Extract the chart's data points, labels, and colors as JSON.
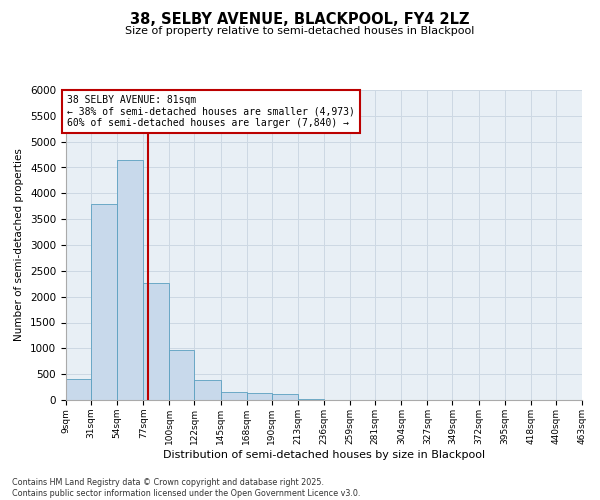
{
  "title_line1": "38, SELBY AVENUE, BLACKPOOL, FY4 2LZ",
  "title_line2": "Size of property relative to semi-detached houses in Blackpool",
  "xlabel": "Distribution of semi-detached houses by size in Blackpool",
  "ylabel": "Number of semi-detached properties",
  "footer_line1": "Contains HM Land Registry data © Crown copyright and database right 2025.",
  "footer_line2": "Contains public sector information licensed under the Open Government Licence v3.0.",
  "property_size": 81,
  "property_label": "38 SELBY AVENUE: 81sqm",
  "smaller_pct": 38,
  "smaller_count": 4973,
  "larger_pct": 60,
  "larger_count": 7840,
  "bar_color": "#c8d9eb",
  "bar_edge_color": "#5a9fc0",
  "line_color": "#bb0000",
  "annotation_edge_color": "#bb0000",
  "grid_color": "#cdd8e3",
  "bg_color": "#e8eff5",
  "bins": [
    9,
    31,
    54,
    77,
    100,
    122,
    145,
    168,
    190,
    213,
    236,
    259,
    281,
    304,
    327,
    349,
    372,
    395,
    418,
    440,
    463
  ],
  "bin_labels": [
    "9sqm",
    "31sqm",
    "54sqm",
    "77sqm",
    "100sqm",
    "122sqm",
    "145sqm",
    "168sqm",
    "190sqm",
    "213sqm",
    "236sqm",
    "259sqm",
    "281sqm",
    "304sqm",
    "327sqm",
    "349sqm",
    "372sqm",
    "395sqm",
    "418sqm",
    "440sqm",
    "463sqm"
  ],
  "counts": [
    400,
    3800,
    4650,
    2270,
    960,
    390,
    150,
    130,
    110,
    15,
    5,
    2,
    1,
    1,
    0,
    0,
    0,
    0,
    0,
    0
  ],
  "ylim": [
    0,
    6000
  ],
  "yticks": [
    0,
    500,
    1000,
    1500,
    2000,
    2500,
    3000,
    3500,
    4000,
    4500,
    5000,
    5500,
    6000
  ]
}
